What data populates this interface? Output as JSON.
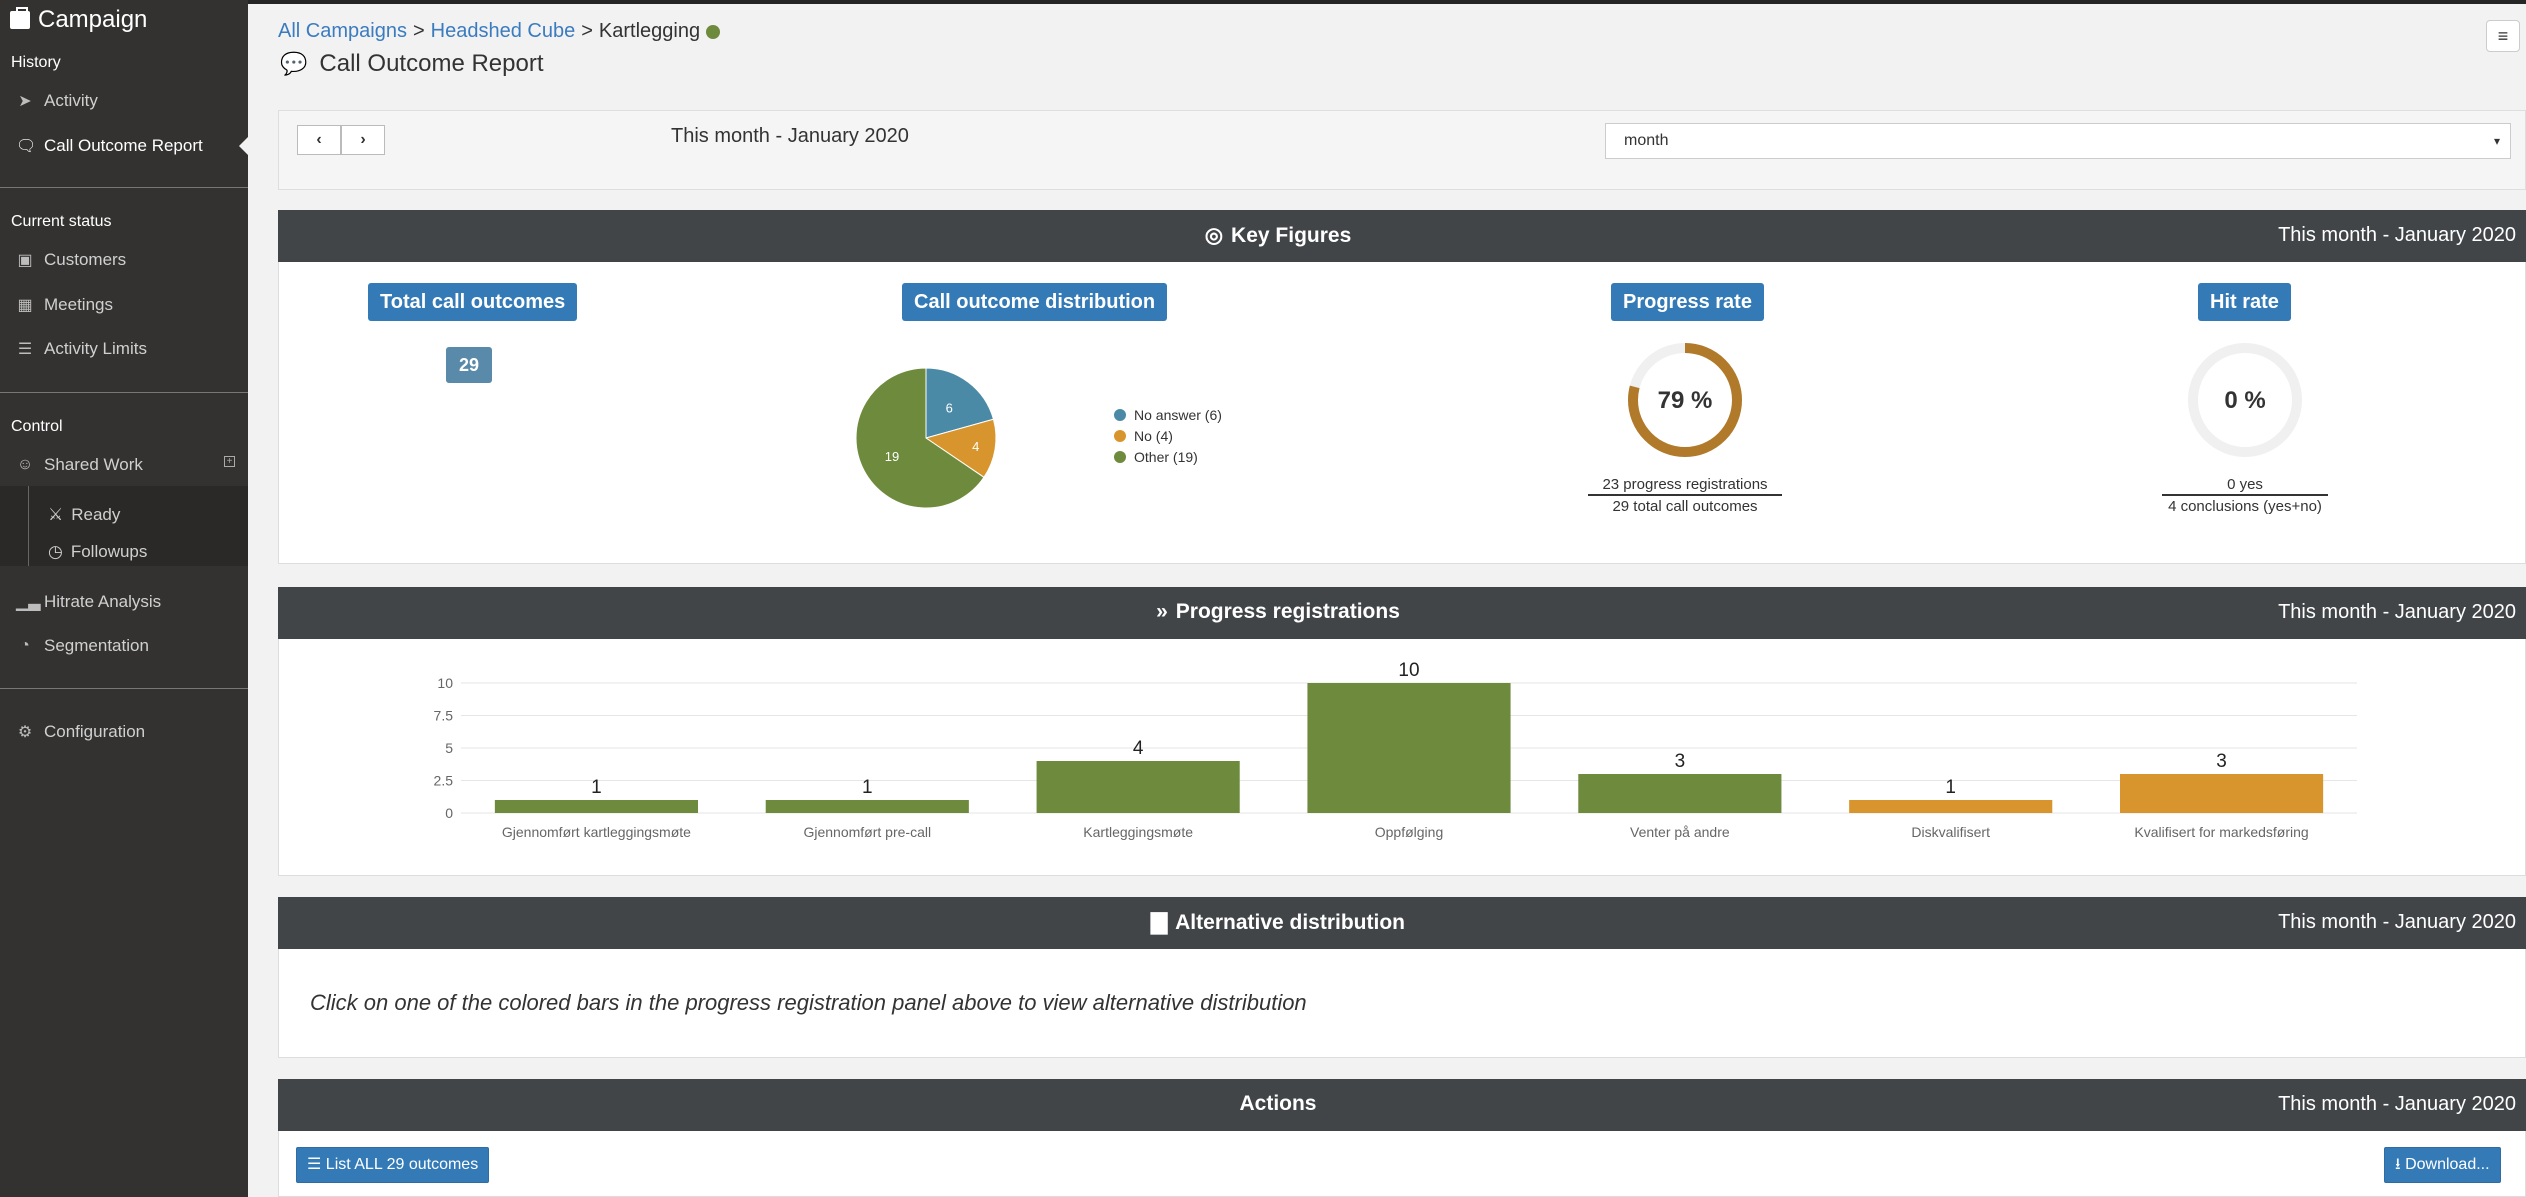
{
  "sidebar": {
    "brand": "Campaign",
    "sections": {
      "history": "History",
      "current_status": "Current status",
      "control": "Control"
    },
    "items": {
      "activity": "Activity",
      "call_outcome_report": "Call Outcome Report",
      "customers": "Customers",
      "meetings": "Meetings",
      "activity_limits": "Activity Limits",
      "shared_work": "Shared Work",
      "ready": "Ready",
      "followups": "Followups",
      "hitrate_analysis": "Hitrate Analysis",
      "segmentation": "Segmentation",
      "configuration": "Configuration"
    }
  },
  "breadcrumb": {
    "all_campaigns": "All Campaigns",
    "sep": ">",
    "campaign": "Headshed Cube",
    "current": "Kartlegging"
  },
  "page_title": "Call Outcome Report",
  "filter": {
    "period_text": "This month - January 2020",
    "select_value": "month"
  },
  "key_figures": {
    "title": "Key Figures",
    "period": "This month - January 2020",
    "total_label": "Total call outcomes",
    "total_value": "29",
    "distribution_label": "Call outcome distribution",
    "progress_label": "Progress rate",
    "progress_value": "79 %",
    "progress_fraction": 0.79,
    "progress_num": "23 progress registrations",
    "progress_den": "29 total call outcomes",
    "hit_label": "Hit rate",
    "hit_value": "0 %",
    "hit_fraction": 0,
    "hit_num": "0 yes",
    "hit_den": "4 conclusions (yes+no)",
    "legend": [
      "No answer (6)",
      "No (4)",
      "Other (19)"
    ]
  },
  "chart_data": [
    {
      "type": "pie",
      "categories": [
        "No answer",
        "No",
        "Other"
      ],
      "values": [
        6,
        4,
        19
      ],
      "colors": [
        "#4a8aa6",
        "#d9952d",
        "#6e8b3d"
      ]
    },
    {
      "type": "bar",
      "categories": [
        "Gjennomført kartleggingsmøte",
        "Gjennomført pre-call",
        "Kartleggingsmøte",
        "Oppfølging",
        "Venter på andre",
        "Diskvalifisert",
        "Kvalifisert for markedsføring"
      ],
      "values": [
        1,
        1,
        4,
        10,
        3,
        1,
        3
      ],
      "colors": [
        "#6e8b3d",
        "#6e8b3d",
        "#6e8b3d",
        "#6e8b3d",
        "#6e8b3d",
        "#d9952d",
        "#d9952d"
      ],
      "y_ticks": [
        "0",
        "2.5",
        "5",
        "7.5",
        "10"
      ],
      "ylim": [
        0,
        10
      ],
      "grid": true
    }
  ],
  "progress_registrations": {
    "title": "Progress registrations",
    "period": "This month - January 2020"
  },
  "alternative_distribution": {
    "title": "Alternative distribution",
    "period": "This month - January 2020",
    "hint": "Click on one of the colored bars in the progress registration panel above to view alternative distribution"
  },
  "actions": {
    "title": "Actions",
    "period": "This month - January 2020",
    "list_button": "List ALL 29 outcomes",
    "download_button": "Download..."
  },
  "colors": {
    "brand_blue": "#337ab7",
    "olive": "#6e8b3d",
    "orange": "#d9952d",
    "teal": "#4a8aa6",
    "progress_ring": "#b07a2a"
  }
}
